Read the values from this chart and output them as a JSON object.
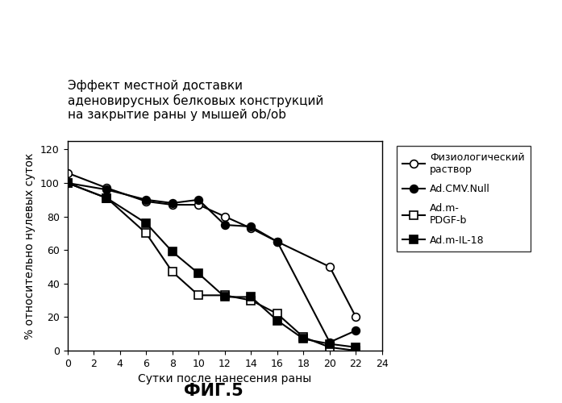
{
  "title": "Эффект местной доставки\nаденовирусных белковых конструкций\nна закрытие раны у мышей ob/ob",
  "xlabel": "Сутки после нанесения раны",
  "ylabel": "% относительно нулевых суток",
  "fig_label": "ФИГ.5",
  "xlim": [
    0,
    24
  ],
  "ylim": [
    0,
    125
  ],
  "xticks": [
    0,
    2,
    4,
    6,
    8,
    10,
    12,
    14,
    16,
    18,
    20,
    22,
    24
  ],
  "yticks": [
    0,
    20,
    40,
    60,
    80,
    100,
    120
  ],
  "series": [
    {
      "label": "Физиологический\nраствор",
      "x": [
        0,
        3,
        6,
        8,
        10,
        12,
        14,
        16,
        20,
        22
      ],
      "y": [
        106,
        97,
        89,
        87,
        87,
        80,
        73,
        65,
        50,
        20
      ],
      "marker": "o",
      "marker_fill": "white",
      "marker_edge": "black",
      "linestyle": "-",
      "color": "black"
    },
    {
      "label": "Ad.CMV.Null",
      "x": [
        0,
        3,
        6,
        8,
        10,
        12,
        14,
        16,
        20,
        22
      ],
      "y": [
        100,
        96,
        90,
        88,
        90,
        75,
        74,
        65,
        5,
        12
      ],
      "marker": "o",
      "marker_fill": "black",
      "marker_edge": "black",
      "linestyle": "-",
      "color": "black"
    },
    {
      "label": "Ad.m-\nPDGF-b",
      "x": [
        0,
        3,
        6,
        8,
        10,
        12,
        14,
        16,
        18,
        20,
        22
      ],
      "y": [
        100,
        91,
        70,
        47,
        33,
        33,
        30,
        22,
        8,
        2,
        0
      ],
      "marker": "s",
      "marker_fill": "white",
      "marker_edge": "black",
      "linestyle": "-",
      "color": "black"
    },
    {
      "label": "Ad.m-IL-18",
      "x": [
        0,
        3,
        6,
        8,
        10,
        12,
        14,
        16,
        18,
        20,
        22
      ],
      "y": [
        100,
        91,
        76,
        59,
        46,
        32,
        32,
        18,
        7,
        4,
        2
      ],
      "marker": "s",
      "marker_fill": "black",
      "marker_edge": "black",
      "linestyle": "-",
      "color": "black"
    }
  ],
  "background_color": "white",
  "title_fontsize": 11,
  "axis_label_fontsize": 10,
  "tick_fontsize": 9,
  "legend_fontsize": 9,
  "fig_label_fontsize": 15
}
